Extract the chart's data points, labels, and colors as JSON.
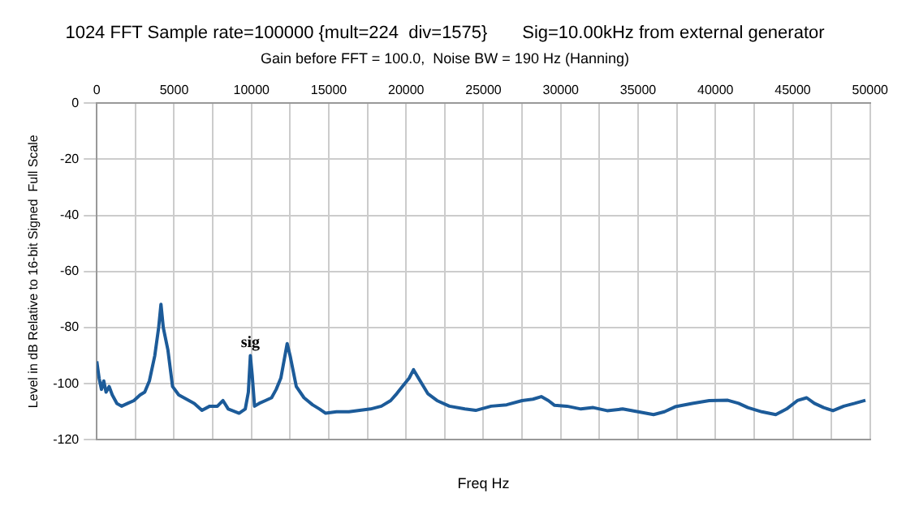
{
  "chart_data": {
    "type": "line",
    "title": "1024 FFT Sample rate=100000 {mult=224  div=1575}       Sig=10.00kHz from external generator",
    "subtitle": "Gain before FFT = 100.0,  Noise BW = 190 Hz (Hanning)",
    "xlabel": "Freq Hz",
    "ylabel": "Level in dB Relative to 16-bit Signed  Full Scale",
    "x": [
      0,
      150,
      300,
      450,
      600,
      800,
      1000,
      1300,
      1600,
      2000,
      2400,
      2800,
      3100,
      3400,
      3750,
      4000,
      4150,
      4300,
      4600,
      4900,
      5300,
      5800,
      6300,
      6800,
      7300,
      7800,
      8160,
      8500,
      9200,
      9600,
      9800,
      9930,
      10050,
      10200,
      10500,
      10900,
      11300,
      11600,
      11900,
      12100,
      12310,
      12500,
      12900,
      13400,
      13950,
      14400,
      14800,
      15500,
      16300,
      17000,
      17700,
      18400,
      19000,
      19400,
      19900,
      20200,
      20480,
      20800,
      21400,
      22000,
      22800,
      23800,
      24500,
      25500,
      26500,
      27500,
      28200,
      28740,
      29200,
      29600,
      30400,
      31300,
      32100,
      33000,
      34000,
      35000,
      36000,
      36700,
      37400,
      38500,
      39600,
      40800,
      41500,
      42100,
      43000,
      43900,
      44600,
      45300,
      45900,
      46400,
      47000,
      47600,
      48300,
      49000,
      49700
    ],
    "series": [
      {
        "color": "#1c5b99",
        "values": [
          -92,
          -98,
          -102,
          -99,
          -103,
          -101,
          -104,
          -107,
          -108,
          -107,
          -106,
          -104,
          -103,
          -99,
          -90,
          -80,
          -71.7,
          -80,
          -88,
          -101,
          -104,
          -105.5,
          -107,
          -109.5,
          -108,
          -108,
          -106,
          -109,
          -110.5,
          -109,
          -103,
          -90,
          -97,
          -108,
          -107,
          -106,
          -105,
          -102,
          -98,
          -92,
          -85.7,
          -90,
          -101,
          -105,
          -107.5,
          -109,
          -110.5,
          -110,
          -110,
          -109.5,
          -109,
          -108,
          -106,
          -103.5,
          -100,
          -98,
          -95,
          -98,
          -103.5,
          -106,
          -108,
          -109,
          -109.5,
          -108,
          -107.5,
          -106,
          -105.5,
          -104.6,
          -106,
          -107.7,
          -108,
          -109,
          -108.5,
          -109.6,
          -109,
          -110,
          -111,
          -110,
          -108.2,
          -107,
          -106,
          -105.9,
          -107,
          -108.5,
          -110,
          -111,
          -109,
          -106,
          -105,
          -107,
          -108.5,
          -109.6,
          -108,
          -107,
          -105.9
        ]
      }
    ],
    "xlim": [
      0,
      50000
    ],
    "xticks": [
      0,
      {
        "value": 2500,
        "label": null
      },
      5000,
      {
        "value": 7500,
        "label": null
      },
      10000,
      {
        "value": 12500,
        "label": null
      },
      15000,
      {
        "value": 17500,
        "label": null
      },
      20000,
      {
        "value": 22500,
        "label": null
      },
      25000,
      {
        "value": 27500,
        "label": null
      },
      30000,
      {
        "value": 32500,
        "label": null
      },
      35000,
      {
        "value": 37500,
        "label": null
      },
      40000,
      {
        "value": 42500,
        "label": null
      },
      45000,
      {
        "value": 47500,
        "label": null
      },
      50000
    ],
    "ylim": [
      -120,
      0
    ],
    "yticks": [
      -120,
      -100,
      -80,
      -60,
      -40,
      -20,
      0
    ],
    "annotations": [
      {
        "text": "sig",
        "x": 9930,
        "y": -90
      }
    ],
    "grid": true,
    "legend": false,
    "marker": "none",
    "line_style": "solid"
  }
}
